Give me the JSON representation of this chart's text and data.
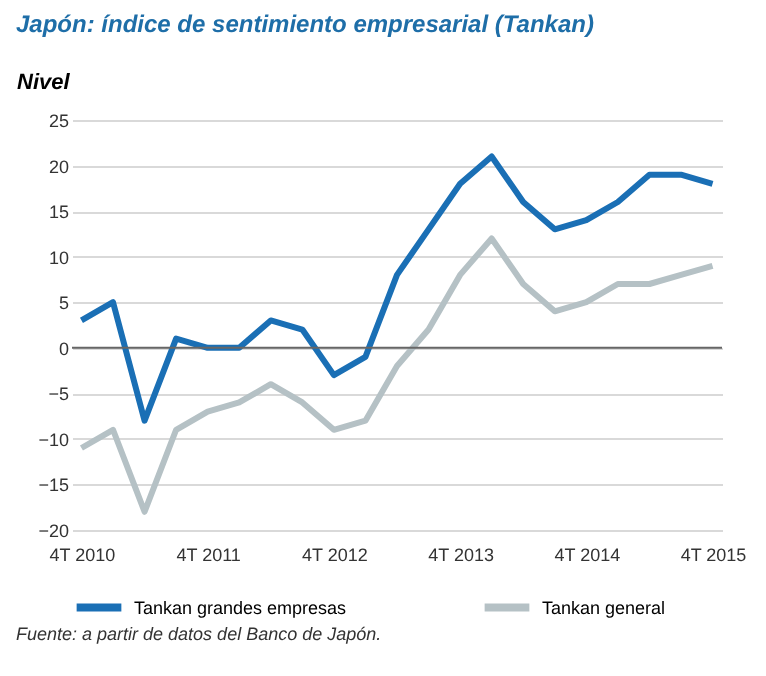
{
  "chart_data": {
    "type": "line",
    "title": "Japón: índice de sentimiento empresarial (Tankan)",
    "ylabel": "Nivel",
    "categories": [
      "4T 2010",
      null,
      null,
      null,
      "4T 2011",
      null,
      null,
      null,
      "4T 2012",
      null,
      null,
      null,
      "4T 2013",
      null,
      null,
      null,
      "4T 2014",
      null,
      null,
      null,
      "4T 2015"
    ],
    "series": [
      {
        "name": "Tankan grandes empresas",
        "color": "#1a6fb5",
        "values": [
          3,
          5,
          -8,
          1,
          0,
          0,
          3,
          2,
          -3,
          -1,
          8,
          13,
          18,
          21,
          16,
          13,
          14,
          16,
          19,
          19,
          18
        ]
      },
      {
        "name": "Tankan general",
        "color": "#b5c1c5",
        "values": [
          -11,
          -9,
          -18,
          -9,
          -7,
          -6,
          -4,
          -6,
          -9,
          -8,
          -2,
          2,
          8,
          12,
          7,
          4,
          5,
          7,
          7,
          8,
          9
        ]
      }
    ],
    "ylim": [
      -20,
      25
    ],
    "yticks": [
      -20,
      -15,
      -10,
      -5,
      0,
      5,
      10,
      15,
      20,
      25
    ],
    "grid": "y",
    "legend": "bottom",
    "marker": "none",
    "line_style": "solid",
    "ref_lines": [
      {
        "axis": "y",
        "value": 0,
        "color": "#666666"
      }
    ],
    "annotations": [
      "Fuente: a partir de datos del Banco de Japón."
    ]
  }
}
